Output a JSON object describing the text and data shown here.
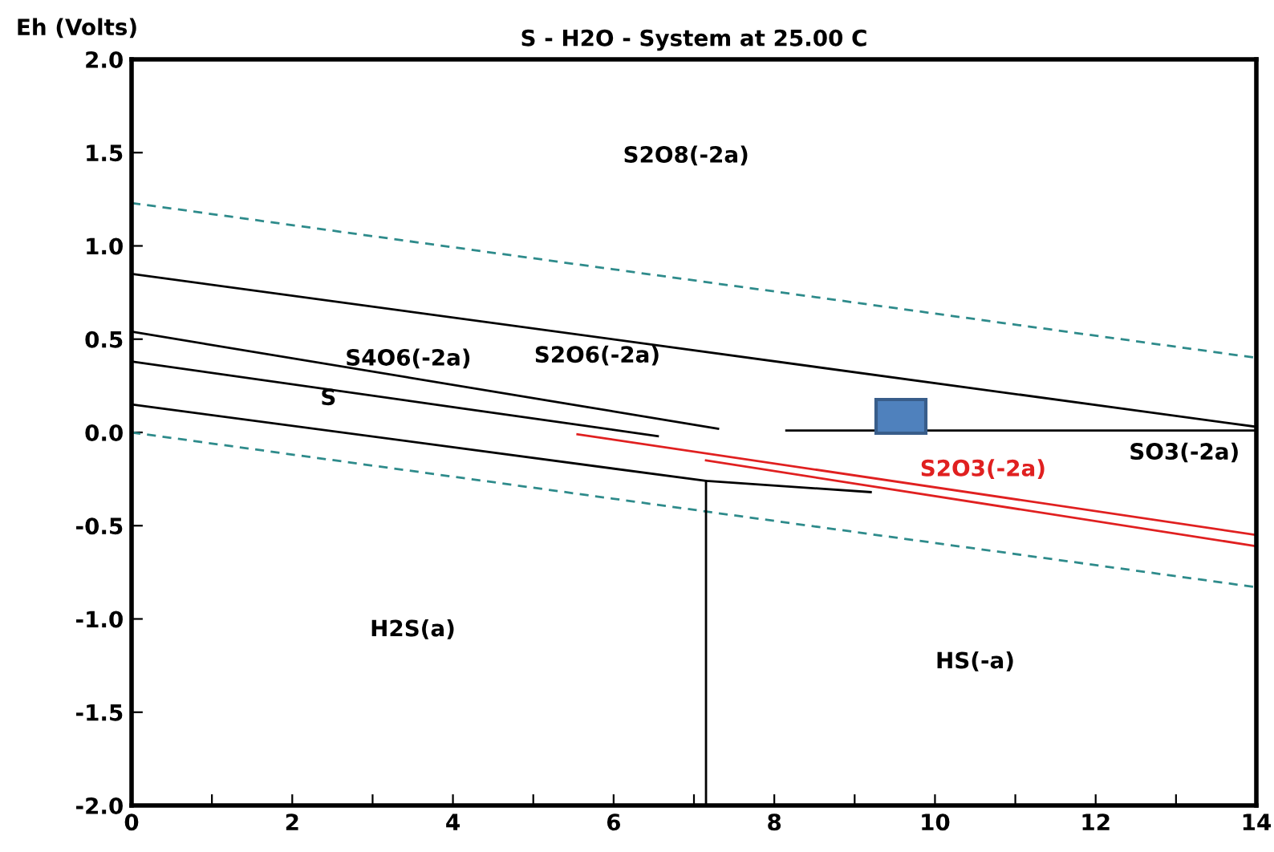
{
  "chart_data": {
    "type": "line",
    "title": "S - H2O - System at 25.00 C",
    "ylabel": "Eh (Volts)",
    "xlim": [
      0,
      14
    ],
    "ylim": [
      -2.0,
      2.0
    ],
    "xticks": [
      0,
      {
        "value": 1,
        "label": null
      },
      2,
      {
        "value": 3,
        "label": null
      },
      4,
      {
        "value": 5,
        "label": null
      },
      6,
      {
        "value": 7,
        "label": null
      },
      8,
      {
        "value": 9,
        "label": null
      },
      10,
      {
        "value": 11,
        "label": null
      },
      12,
      {
        "value": 13,
        "label": null
      },
      14
    ],
    "yticks": [
      {
        "value": -2,
        "label": "-2.0"
      },
      {
        "value": -1.5,
        "label": "-1.5"
      },
      {
        "value": -1,
        "label": "-1.0"
      },
      {
        "value": -0.5,
        "label": "-0.5"
      },
      {
        "value": 0,
        "label": "0.0"
      },
      {
        "value": 0.5,
        "label": "0.5"
      },
      {
        "value": 1,
        "label": "1.0"
      },
      {
        "value": 1.5,
        "label": "1.5"
      },
      {
        "value": 2,
        "label": "2.0"
      }
    ],
    "grid": false,
    "legend": false,
    "marker": "none",
    "series": [
      {
        "x": [
          0,
          14
        ],
        "values": [
          1.23,
          0.4
        ],
        "color": "#2e8b8b",
        "line_style": "dashed"
      },
      {
        "x": [
          0,
          14
        ],
        "values": [
          0.0,
          -0.83
        ],
        "color": "#2e8b8b",
        "line_style": "dashed"
      },
      {
        "x": [
          0,
          14
        ],
        "values": [
          0.85,
          0.03
        ],
        "color": "#000000",
        "line_style": "solid"
      },
      {
        "x": [
          0,
          7.3
        ],
        "values": [
          0.54,
          0.02
        ],
        "color": "#000000",
        "line_style": "solid"
      },
      {
        "x": [
          8.15,
          14
        ],
        "values": [
          0.01,
          0.01
        ],
        "color": "#000000",
        "line_style": "solid"
      },
      {
        "x": [
          0,
          6.55
        ],
        "values": [
          0.38,
          -0.02
        ],
        "color": "#000000",
        "line_style": "solid"
      },
      {
        "x": [
          0,
          7.15,
          9.2
        ],
        "values": [
          0.15,
          -0.26,
          -0.32
        ],
        "color": "#000000",
        "line_style": "solid"
      },
      {
        "x": [
          7.15,
          7.15
        ],
        "values": [
          -0.26,
          -2.0
        ],
        "color": "#000000",
        "line_style": "solid"
      },
      {
        "name": "S2O3(-2a)",
        "x": [
          5.55,
          14
        ],
        "values": [
          -0.01,
          -0.55
        ],
        "color": "#e02020",
        "line_style": "solid"
      },
      {
        "x": [
          7.15,
          14
        ],
        "values": [
          -0.15,
          -0.61
        ],
        "color": "#e02020",
        "line_style": "solid"
      }
    ],
    "annotations": [
      "S2O8(-2a)",
      "S4O6(-2a)",
      "S2O6(-2a)",
      "S",
      "SO3(-2a)",
      "H2S(a)",
      "HS(-a)"
    ]
  }
}
